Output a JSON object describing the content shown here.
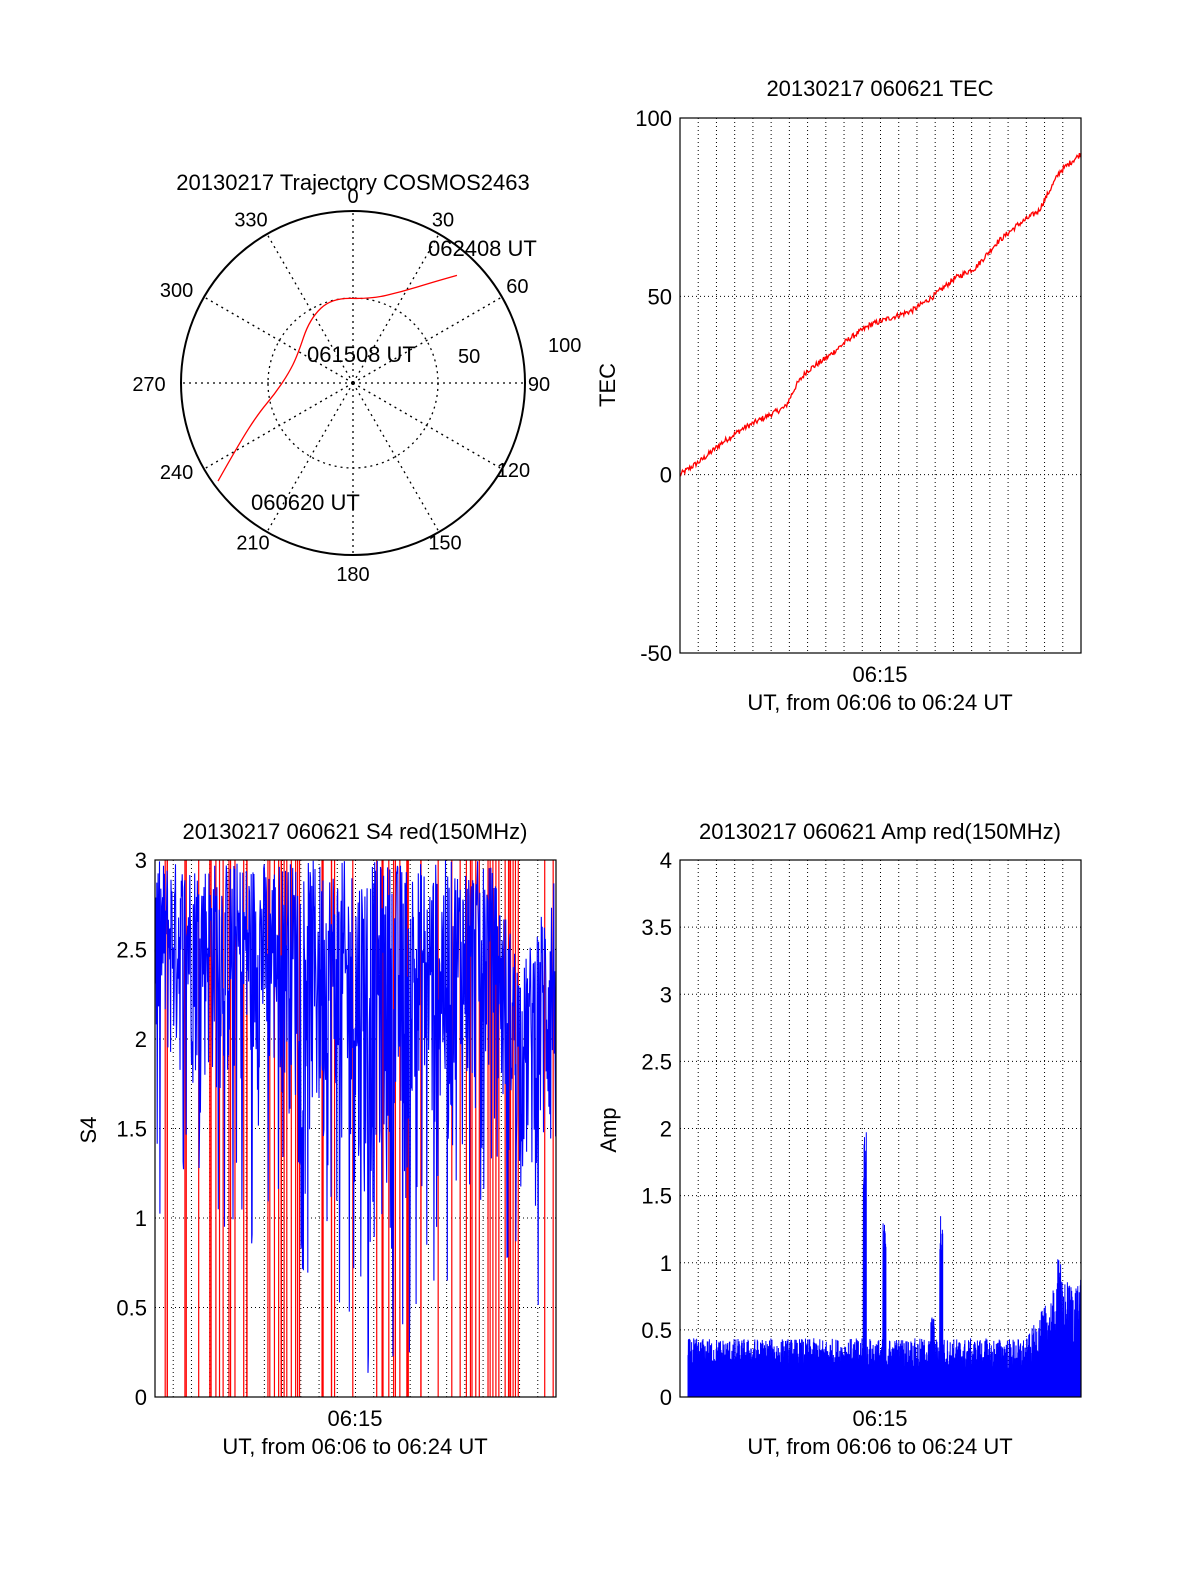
{
  "chart_data": [
    {
      "type": "polar",
      "title": "20130217 Trajectory COSMOS2463",
      "azimuth_labels": [
        "0",
        "30",
        "60",
        "90",
        "120",
        "150",
        "180",
        "210",
        "240",
        "270",
        "300",
        "330"
      ],
      "radial_labels": [
        "50",
        "100"
      ],
      "track": {
        "color": "#ff0000",
        "start_label": "060620 UT",
        "mid_label": "061508 UT",
        "end_label": "062408 UT",
        "points": [
          {
            "az": 234,
            "zen": 97
          },
          {
            "az": 242,
            "zen": 75
          },
          {
            "az": 252,
            "zen": 58
          },
          {
            "az": 262,
            "zen": 46
          },
          {
            "az": 278,
            "zen": 38
          },
          {
            "az": 296,
            "zen": 36
          },
          {
            "az": 326,
            "zen": 45
          },
          {
            "az": 346,
            "zen": 51
          },
          {
            "az": 12,
            "zen": 50
          },
          {
            "az": 28,
            "zen": 60
          },
          {
            "az": 38,
            "zen": 74
          },
          {
            "az": 44,
            "zen": 87
          }
        ]
      }
    },
    {
      "type": "line",
      "title": "20130217 060621 TEC",
      "xlabel": "UT, from 06:06 to 06:24 UT",
      "ylabel": "TEC",
      "x_tick_labels": [
        "06:15"
      ],
      "y_tick_labels": [
        "100",
        "50",
        "0",
        "-50"
      ],
      "ylim": [
        -50,
        100
      ],
      "series_color": "#ff0000",
      "points": [
        [
          0,
          0
        ],
        [
          1,
          4
        ],
        [
          2,
          9
        ],
        [
          3,
          13
        ],
        [
          4,
          16
        ],
        [
          5,
          19
        ],
        [
          5.5,
          25
        ],
        [
          6,
          29
        ],
        [
          7,
          33
        ],
        [
          8,
          38
        ],
        [
          9,
          42
        ],
        [
          10,
          44
        ],
        [
          11,
          46
        ],
        [
          12,
          50
        ],
        [
          13,
          55
        ],
        [
          14,
          58
        ],
        [
          15,
          65
        ],
        [
          16,
          70
        ],
        [
          17,
          74
        ],
        [
          18,
          85
        ],
        [
          19,
          90
        ]
      ]
    },
    {
      "type": "line",
      "title": "20130217 060621 S4 red(150MHz)",
      "xlabel": "UT, from 06:06 to 06:24 UT",
      "ylabel": "S4",
      "x_tick_labels": [
        "06:15"
      ],
      "y_tick_labels": [
        "3",
        "2.5",
        "2",
        "1.5",
        "1",
        "0.5",
        "0"
      ],
      "ylim": [
        0,
        3
      ],
      "series_colors": [
        "#ff0000",
        "#0000ff"
      ],
      "summary_envelope": [
        {
          "t": 0,
          "min": 1.6,
          "max": 3.0
        },
        {
          "t": 2,
          "min": 1.6,
          "max": 3.0
        },
        {
          "t": 4,
          "min": 1.4,
          "max": 3.0
        },
        {
          "t": 6,
          "min": 1.5,
          "max": 3.0
        },
        {
          "t": 8,
          "min": 0.8,
          "max": 3.0
        },
        {
          "t": 9,
          "min": 0.5,
          "max": 3.0
        },
        {
          "t": 11,
          "min": 0.8,
          "max": 3.0
        },
        {
          "t": 13,
          "min": 1.0,
          "max": 3.0
        },
        {
          "t": 15,
          "min": 1.5,
          "max": 3.0
        },
        {
          "t": 16.5,
          "min": 1.0,
          "max": 2.4
        },
        {
          "t": 18,
          "min": 0.9,
          "max": 3.0
        }
      ]
    },
    {
      "type": "line",
      "title": "20130217 060621 Amp red(150MHz)",
      "xlabel": "UT, from 06:06 to 06:24 UT",
      "ylabel": "Amp",
      "x_tick_labels": [
        "06:15"
      ],
      "y_tick_labels": [
        "4",
        "3.5",
        "3",
        "2.5",
        "2",
        "1.5",
        "1",
        "0.5",
        "0"
      ],
      "ylim": [
        0,
        4
      ],
      "series_color": "#0000ff",
      "baseline_level": 0.35,
      "peaks": [
        {
          "t": 8.1,
          "value": 2.05
        },
        {
          "t": 9.0,
          "value": 1.3
        },
        {
          "t": 11.2,
          "value": 0.6
        },
        {
          "t": 11.6,
          "value": 1.4
        },
        {
          "t": 17.0,
          "value": 1.1
        },
        {
          "t": 18.2,
          "value": 1.2
        }
      ],
      "late_level": 0.7
    }
  ]
}
